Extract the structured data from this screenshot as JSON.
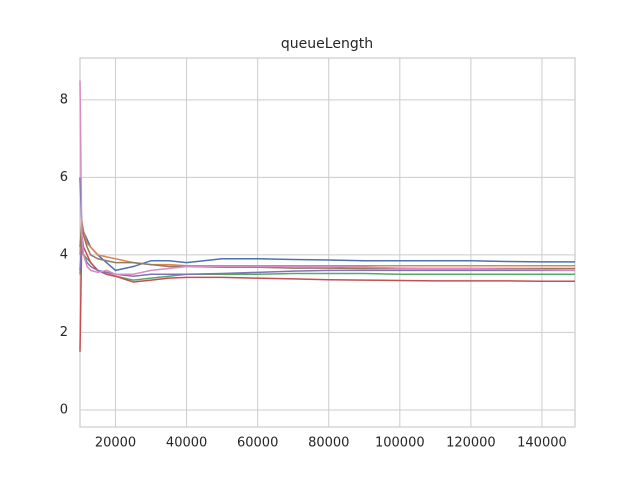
{
  "chart_data": {
    "type": "line",
    "title": "queueLength",
    "x": [
      10000,
      10500,
      11000,
      12000,
      13000,
      15000,
      17500,
      20000,
      25000,
      30000,
      35000,
      40000,
      50000,
      60000,
      70000,
      80000,
      90000,
      100000,
      110000,
      120000,
      130000,
      140000,
      149300
    ],
    "series": [
      {
        "color": "#4c72b0",
        "values": [
          6.0,
          4.8,
          4.6,
          4.4,
          4.2,
          4.0,
          3.8,
          3.6,
          3.7,
          3.85,
          3.85,
          3.8,
          3.9,
          3.9,
          3.88,
          3.87,
          3.85,
          3.85,
          3.85,
          3.85,
          3.83,
          3.82,
          3.82
        ]
      },
      {
        "color": "#dd8452",
        "values": [
          4.0,
          4.9,
          4.6,
          4.3,
          4.2,
          4.0,
          3.95,
          3.9,
          3.8,
          3.75,
          3.75,
          3.72,
          3.72,
          3.72,
          3.72,
          3.72,
          3.72,
          3.72,
          3.72,
          3.72,
          3.72,
          3.72,
          3.72
        ]
      },
      {
        "color": "#55a868",
        "values": [
          3.5,
          4.2,
          4.0,
          3.9,
          3.8,
          3.6,
          3.5,
          3.45,
          3.35,
          3.4,
          3.45,
          3.5,
          3.5,
          3.5,
          3.52,
          3.52,
          3.52,
          3.5,
          3.5,
          3.5,
          3.5,
          3.5,
          3.5
        ]
      },
      {
        "color": "#c44e52",
        "values": [
          1.5,
          4.5,
          4.2,
          4.0,
          3.8,
          3.6,
          3.5,
          3.45,
          3.3,
          3.35,
          3.4,
          3.42,
          3.42,
          3.4,
          3.38,
          3.36,
          3.35,
          3.34,
          3.33,
          3.33,
          3.33,
          3.32,
          3.32
        ]
      },
      {
        "color": "#8172b3",
        "values": [
          3.6,
          4.3,
          4.0,
          3.8,
          3.7,
          3.6,
          3.55,
          3.5,
          3.45,
          3.5,
          3.5,
          3.5,
          3.52,
          3.55,
          3.58,
          3.6,
          3.6,
          3.6,
          3.6,
          3.6,
          3.6,
          3.6,
          3.6
        ]
      },
      {
        "color": "#937860",
        "values": [
          4.2,
          4.8,
          4.5,
          4.2,
          4.0,
          3.9,
          3.85,
          3.8,
          3.8,
          3.75,
          3.7,
          3.7,
          3.68,
          3.68,
          3.66,
          3.66,
          3.65,
          3.65,
          3.65,
          3.65,
          3.65,
          3.65,
          3.65
        ]
      },
      {
        "color": "#da8bc3",
        "values": [
          8.5,
          4.5,
          4.0,
          3.7,
          3.6,
          3.55,
          3.6,
          3.5,
          3.5,
          3.6,
          3.65,
          3.7,
          3.7,
          3.7,
          3.7,
          3.7,
          3.68,
          3.66,
          3.65,
          3.65,
          3.63,
          3.62,
          3.6
        ]
      }
    ],
    "xlim": [
      10000,
      149300
    ],
    "xticks": [
      20000,
      40000,
      60000,
      80000,
      100000,
      120000,
      140000
    ],
    "ylim": [
      -0.44,
      9.08
    ],
    "yticks": [
      0,
      2,
      4,
      6,
      8
    ],
    "grid": true
  }
}
